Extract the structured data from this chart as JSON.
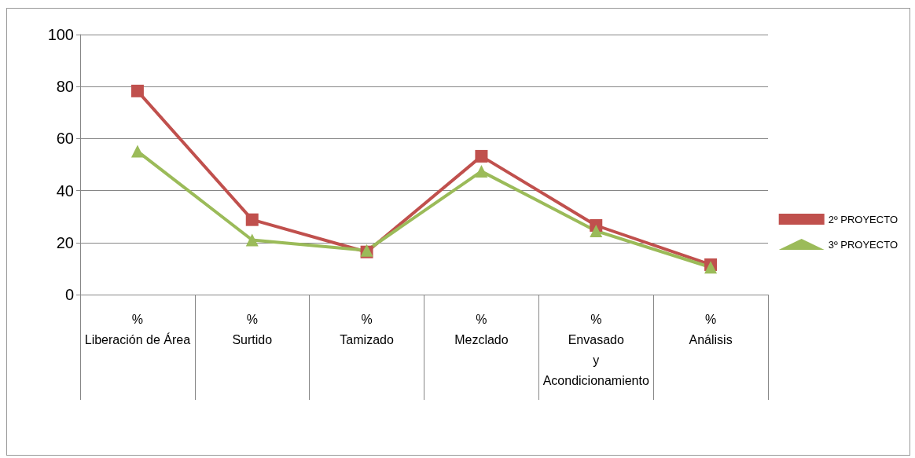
{
  "chart_data": {
    "type": "line",
    "categories": [
      "%\nLiberación de Área",
      "%\nSurtido",
      "%\nTamizado",
      "%\nMezclado",
      "%\nEnvasado\ny\nAcondicionamiento",
      "%\nAnálisis"
    ],
    "series": [
      {
        "name": "2º PROYECTO",
        "color": "#c0504d",
        "marker": "square",
        "values": [
          78.3,
          28.8,
          16.4,
          53.2,
          26.6,
          11.5
        ]
      },
      {
        "name": "3º PROYECTO",
        "color": "#9bbb59",
        "marker": "triangle",
        "values": [
          55.1,
          21,
          17,
          47.4,
          24.5,
          10.5
        ]
      }
    ],
    "ylim": [
      0,
      100
    ],
    "yticks": [
      0,
      20,
      40,
      60,
      80,
      100
    ],
    "grid": "y",
    "legend": "right"
  }
}
